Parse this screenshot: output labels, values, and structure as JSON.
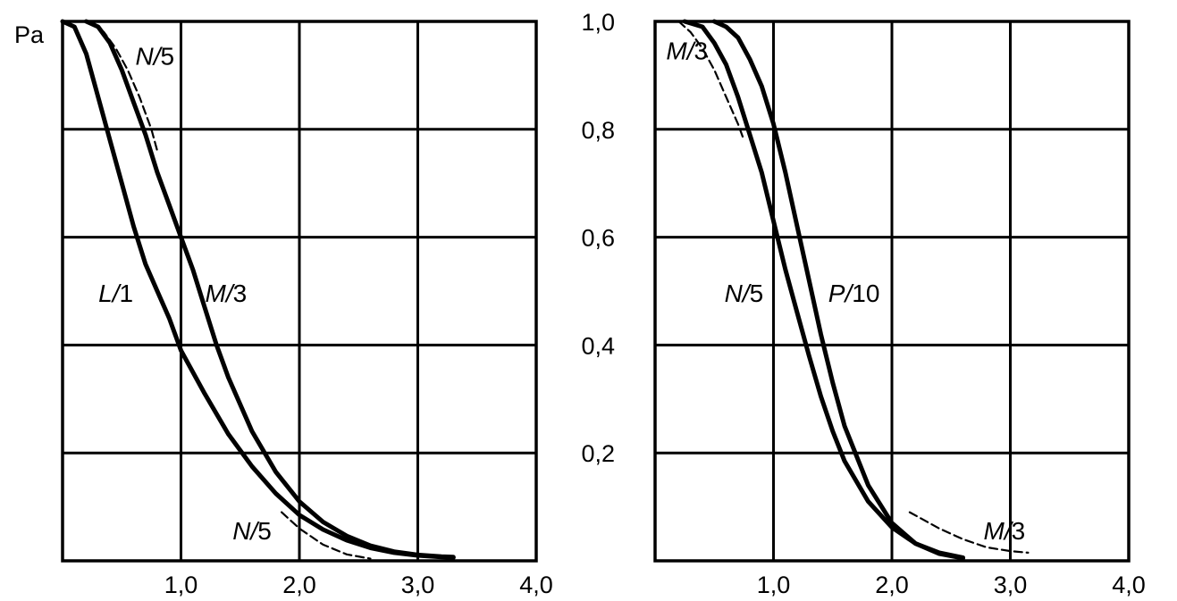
{
  "chart_data": [
    {
      "type": "line",
      "panel": "left",
      "ylabel": "Pa",
      "x_tick_labels": [
        "1,0",
        "2,0",
        "3,0",
        "4,0"
      ],
      "x_ticks": [
        1,
        2,
        3,
        4
      ],
      "y_ticks": [
        0.2,
        0.4,
        0.6,
        0.8
      ],
      "xlim": [
        0,
        4
      ],
      "ylim": [
        0,
        1
      ],
      "grid": true,
      "series": [
        {
          "name": "L/1",
          "label": "L/1",
          "style": "solid",
          "x": [
            0,
            0.1,
            0.2,
            0.3,
            0.4,
            0.5,
            0.6,
            0.7,
            0.8,
            0.9,
            1.0,
            1.2,
            1.4,
            1.6,
            1.8,
            2.0,
            2.2,
            2.4,
            2.6,
            2.8,
            3.0,
            3.2,
            3.3
          ],
          "y": [
            1.0,
            0.99,
            0.94,
            0.86,
            0.78,
            0.7,
            0.62,
            0.55,
            0.5,
            0.45,
            0.39,
            0.31,
            0.235,
            0.175,
            0.125,
            0.085,
            0.058,
            0.038,
            0.024,
            0.015,
            0.01,
            0.007,
            0.006
          ]
        },
        {
          "name": "M/3",
          "label": "M/3",
          "style": "solid",
          "x": [
            0.2,
            0.3,
            0.4,
            0.5,
            0.6,
            0.7,
            0.8,
            0.9,
            1.0,
            1.1,
            1.2,
            1.3,
            1.4,
            1.6,
            1.8,
            2.0,
            2.2,
            2.4,
            2.6,
            2.8,
            3.0,
            3.2,
            3.3
          ],
          "y": [
            1.0,
            0.99,
            0.96,
            0.91,
            0.85,
            0.79,
            0.72,
            0.66,
            0.6,
            0.54,
            0.47,
            0.4,
            0.34,
            0.24,
            0.165,
            0.11,
            0.072,
            0.046,
            0.028,
            0.017,
            0.011,
            0.008,
            0.007
          ]
        },
        {
          "name": "N/5 (upper)",
          "label": "N/5",
          "style": "dashed",
          "x": [
            0.25,
            0.35,
            0.45,
            0.55,
            0.65,
            0.75,
            0.8
          ],
          "y": [
            1.0,
            0.98,
            0.95,
            0.91,
            0.86,
            0.8,
            0.76
          ]
        },
        {
          "name": "N/5 (lower)",
          "label": "N/5",
          "style": "dashed",
          "x": [
            1.85,
            2.0,
            2.2,
            2.4,
            2.6
          ],
          "y": [
            0.09,
            0.06,
            0.03,
            0.012,
            0.004
          ]
        }
      ],
      "annotations": [
        {
          "text": "N/5",
          "x": 0.78,
          "y": 0.92
        },
        {
          "text": "L/1",
          "x": 0.45,
          "y": 0.48
        },
        {
          "text": "M/3",
          "x": 1.38,
          "y": 0.48
        },
        {
          "text": "N/5",
          "x": 1.6,
          "y": 0.04
        }
      ]
    },
    {
      "type": "line",
      "panel": "right",
      "ylabel": "",
      "x_tick_labels": [
        "1,0",
        "2,0",
        "3,0",
        "4,0"
      ],
      "x_ticks": [
        1,
        2,
        3,
        4
      ],
      "y_tick_labels": [
        "0,2",
        "0,4",
        "0,6",
        "0,8",
        "1,0"
      ],
      "y_ticks": [
        0.2,
        0.4,
        0.6,
        0.8,
        1.0
      ],
      "xlim": [
        0,
        4
      ],
      "ylim": [
        0,
        1
      ],
      "grid": true,
      "series": [
        {
          "name": "N/5",
          "label": "N/5",
          "style": "solid",
          "x": [
            0.25,
            0.4,
            0.5,
            0.6,
            0.7,
            0.8,
            0.9,
            1.0,
            1.1,
            1.2,
            1.3,
            1.4,
            1.5,
            1.6,
            1.8,
            2.0,
            2.2,
            2.4,
            2.6
          ],
          "y": [
            1.0,
            0.99,
            0.96,
            0.92,
            0.86,
            0.79,
            0.72,
            0.63,
            0.54,
            0.46,
            0.38,
            0.305,
            0.24,
            0.185,
            0.11,
            0.062,
            0.032,
            0.015,
            0.006
          ]
        },
        {
          "name": "P/10",
          "label": "P/10",
          "style": "solid",
          "x": [
            0.5,
            0.6,
            0.7,
            0.8,
            0.9,
            1.0,
            1.1,
            1.2,
            1.3,
            1.4,
            1.5,
            1.6,
            1.8,
            2.0,
            2.2,
            2.4,
            2.6
          ],
          "y": [
            1.0,
            0.99,
            0.97,
            0.93,
            0.88,
            0.81,
            0.72,
            0.62,
            0.52,
            0.42,
            0.33,
            0.25,
            0.14,
            0.07,
            0.032,
            0.013,
            0.005
          ]
        },
        {
          "name": "M/3 (upper)",
          "label": "M/3",
          "style": "dashed",
          "x": [
            0.2,
            0.3,
            0.4,
            0.5,
            0.6,
            0.7,
            0.75
          ],
          "y": [
            1.0,
            0.98,
            0.95,
            0.91,
            0.86,
            0.81,
            0.78
          ]
        },
        {
          "name": "M/3 (lower)",
          "label": "M/3",
          "style": "dashed",
          "x": [
            2.15,
            2.4,
            2.6,
            2.8,
            3.0,
            3.15
          ],
          "y": [
            0.09,
            0.06,
            0.04,
            0.025,
            0.018,
            0.015
          ]
        }
      ],
      "annotations": [
        {
          "text": "M/3",
          "x": 0.27,
          "y": 0.93
        },
        {
          "text": "N/5",
          "x": 0.75,
          "y": 0.48
        },
        {
          "text": "P/10",
          "x": 1.68,
          "y": 0.48
        },
        {
          "text": "M/3",
          "x": 2.95,
          "y": 0.04
        }
      ]
    }
  ]
}
